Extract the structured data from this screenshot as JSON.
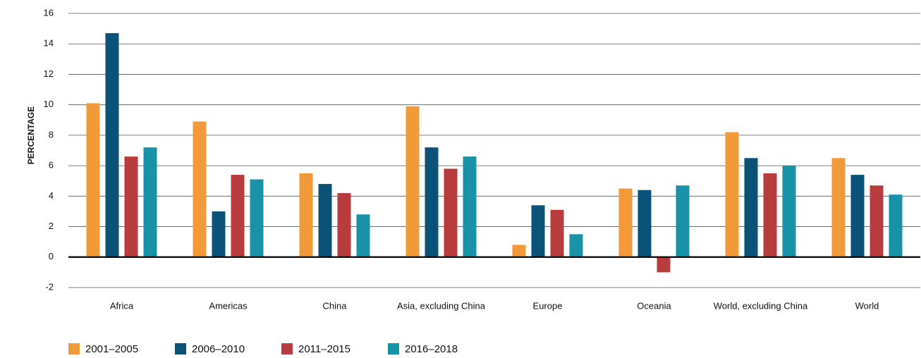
{
  "chart_data": {
    "type": "bar",
    "y_label": "PERCENTAGE",
    "categories": [
      "Africa",
      "Americas",
      "China",
      "Asia, excluding China",
      "Europe",
      "Oceania",
      "World, excluding China",
      "World"
    ],
    "series": [
      {
        "name": "2001–2005",
        "color": "#f2993a",
        "values": [
          10.1,
          8.9,
          5.5,
          9.9,
          0.8,
          4.5,
          8.2,
          6.5
        ]
      },
      {
        "name": "2006–2010",
        "color": "#0b5278",
        "values": [
          14.7,
          3.0,
          4.8,
          7.2,
          3.4,
          4.4,
          6.5,
          5.4
        ]
      },
      {
        "name": "2011–2015",
        "color": "#b83b3e",
        "values": [
          6.6,
          5.4,
          4.2,
          5.8,
          3.1,
          -1.0,
          5.5,
          4.7
        ]
      },
      {
        "name": "2016–2018",
        "color": "#1792a6",
        "values": [
          7.2,
          5.1,
          2.8,
          6.6,
          1.5,
          4.7,
          6.0,
          4.1
        ]
      }
    ],
    "ylim": [
      -2,
      16
    ],
    "yticks": [
      -2,
      0,
      2,
      4,
      6,
      8,
      10,
      12,
      14,
      16
    ],
    "grid": true,
    "legend": "bottom"
  }
}
